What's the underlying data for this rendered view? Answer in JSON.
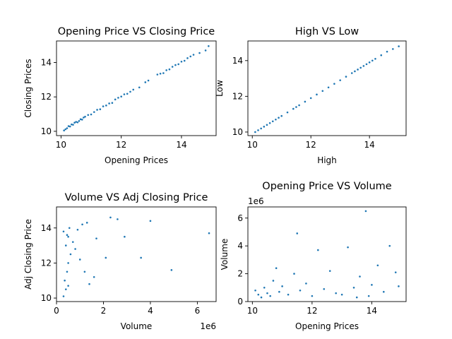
{
  "chart_data": [
    {
      "type": "scatter",
      "title": "Opening Price VS Closing Price",
      "xlabel": "Opening Prices",
      "ylabel": "Closing Prices",
      "xlim": [
        9.85,
        15.15
      ],
      "ylim": [
        9.75,
        15.25
      ],
      "xticks": [
        10,
        12,
        14
      ],
      "yticks": [
        10,
        12,
        14
      ],
      "points": [
        [
          10.1,
          10.05
        ],
        [
          10.15,
          10.12
        ],
        [
          10.2,
          10.18
        ],
        [
          10.25,
          10.3
        ],
        [
          10.3,
          10.28
        ],
        [
          10.35,
          10.4
        ],
        [
          10.4,
          10.38
        ],
        [
          10.45,
          10.5
        ],
        [
          10.5,
          10.55
        ],
        [
          10.55,
          10.52
        ],
        [
          10.6,
          10.6
        ],
        [
          10.65,
          10.7
        ],
        [
          10.7,
          10.68
        ],
        [
          10.75,
          10.8
        ],
        [
          10.8,
          10.85
        ],
        [
          10.9,
          10.95
        ],
        [
          11.0,
          10.98
        ],
        [
          11.1,
          11.12
        ],
        [
          11.2,
          11.25
        ],
        [
          11.3,
          11.28
        ],
        [
          11.4,
          11.45
        ],
        [
          11.5,
          11.5
        ],
        [
          11.6,
          11.62
        ],
        [
          11.7,
          11.65
        ],
        [
          11.8,
          11.85
        ],
        [
          11.9,
          11.95
        ],
        [
          12.0,
          12.02
        ],
        [
          12.1,
          12.15
        ],
        [
          12.2,
          12.18
        ],
        [
          12.3,
          12.3
        ],
        [
          12.4,
          12.42
        ],
        [
          12.6,
          12.55
        ],
        [
          12.8,
          12.85
        ],
        [
          12.9,
          12.95
        ],
        [
          13.2,
          13.3
        ],
        [
          13.3,
          13.35
        ],
        [
          13.4,
          13.38
        ],
        [
          13.5,
          13.55
        ],
        [
          13.6,
          13.6
        ],
        [
          13.7,
          13.75
        ],
        [
          13.8,
          13.85
        ],
        [
          13.9,
          13.9
        ],
        [
          14.0,
          14.05
        ],
        [
          14.1,
          14.1
        ],
        [
          14.2,
          14.25
        ],
        [
          14.3,
          14.35
        ],
        [
          14.4,
          14.45
        ],
        [
          14.6,
          14.55
        ],
        [
          14.8,
          14.7
        ],
        [
          14.9,
          14.95
        ]
      ]
    },
    {
      "type": "scatter",
      "title": "High VS Low",
      "xlabel": "High",
      "ylabel": "Low",
      "xlim": [
        9.85,
        15.25
      ],
      "ylim": [
        9.8,
        15.1
      ],
      "xticks": [
        10,
        12,
        14
      ],
      "yticks": [
        10,
        12,
        14
      ],
      "points": [
        [
          10.1,
          10.0
        ],
        [
          10.2,
          10.1
        ],
        [
          10.3,
          10.2
        ],
        [
          10.4,
          10.3
        ],
        [
          10.5,
          10.4
        ],
        [
          10.6,
          10.5
        ],
        [
          10.7,
          10.6
        ],
        [
          10.8,
          10.7
        ],
        [
          10.9,
          10.8
        ],
        [
          11.0,
          10.9
        ],
        [
          11.2,
          11.1
        ],
        [
          11.4,
          11.3
        ],
        [
          11.5,
          11.4
        ],
        [
          11.6,
          11.5
        ],
        [
          11.8,
          11.7
        ],
        [
          12.0,
          11.9
        ],
        [
          12.2,
          12.1
        ],
        [
          12.4,
          12.3
        ],
        [
          12.6,
          12.5
        ],
        [
          12.8,
          12.7
        ],
        [
          13.0,
          12.9
        ],
        [
          13.2,
          13.1
        ],
        [
          13.4,
          13.3
        ],
        [
          13.5,
          13.4
        ],
        [
          13.6,
          13.5
        ],
        [
          13.7,
          13.6
        ],
        [
          13.8,
          13.7
        ],
        [
          13.9,
          13.8
        ],
        [
          14.0,
          13.9
        ],
        [
          14.1,
          14.0
        ],
        [
          14.2,
          14.1
        ],
        [
          14.4,
          14.3
        ],
        [
          14.6,
          14.5
        ],
        [
          14.8,
          14.65
        ],
        [
          15.0,
          14.8
        ]
      ]
    },
    {
      "type": "scatter",
      "title": "Volume VS Adj Closing Price",
      "xlabel": "Volume",
      "ylabel": "Adj Closing Price",
      "x_multiplier": "1e6",
      "xlim": [
        0,
        6.8
      ],
      "ylim": [
        9.8,
        15.2
      ],
      "xticks": [
        0,
        2,
        4,
        6
      ],
      "yticks": [
        10,
        12,
        14
      ],
      "points": [
        [
          0.3,
          10.1
        ],
        [
          0.4,
          10.5
        ],
        [
          0.5,
          10.7
        ],
        [
          0.35,
          11.0
        ],
        [
          0.45,
          11.5
        ],
        [
          0.5,
          12.0
        ],
        [
          0.6,
          12.5
        ],
        [
          0.4,
          13.0
        ],
        [
          0.5,
          13.5
        ],
        [
          0.55,
          14.0
        ],
        [
          0.3,
          13.8
        ],
        [
          0.45,
          13.6
        ],
        [
          0.7,
          13.2
        ],
        [
          0.8,
          12.8
        ],
        [
          1.0,
          12.2
        ],
        [
          1.2,
          11.5
        ],
        [
          1.4,
          10.8
        ],
        [
          1.6,
          11.2
        ],
        [
          0.9,
          13.9
        ],
        [
          1.1,
          14.2
        ],
        [
          1.3,
          14.3
        ],
        [
          1.7,
          13.4
        ],
        [
          2.1,
          12.3
        ],
        [
          2.3,
          14.6
        ],
        [
          2.6,
          14.5
        ],
        [
          2.9,
          13.5
        ],
        [
          3.6,
          12.3
        ],
        [
          4.0,
          14.4
        ],
        [
          4.9,
          11.6
        ],
        [
          6.5,
          13.7
        ]
      ]
    },
    {
      "type": "scatter",
      "title": "Opening Price VS Volume",
      "xlabel": "Opening Prices",
      "ylabel": "Volume",
      "y_multiplier": "1e6",
      "xlim": [
        9.85,
        15.15
      ],
      "ylim": [
        0,
        6.8
      ],
      "xticks": [
        10,
        12,
        14
      ],
      "yticks": [
        0,
        2,
        4,
        6
      ],
      "points": [
        [
          10.1,
          0.8
        ],
        [
          10.2,
          0.5
        ],
        [
          10.3,
          0.3
        ],
        [
          10.4,
          1.0
        ],
        [
          10.5,
          0.6
        ],
        [
          10.6,
          0.4
        ],
        [
          10.7,
          1.5
        ],
        [
          10.8,
          2.4
        ],
        [
          10.9,
          0.7
        ],
        [
          11.0,
          1.1
        ],
        [
          11.2,
          0.5
        ],
        [
          11.4,
          2.0
        ],
        [
          11.5,
          4.9
        ],
        [
          11.6,
          0.8
        ],
        [
          11.8,
          1.3
        ],
        [
          12.0,
          0.4
        ],
        [
          12.2,
          3.7
        ],
        [
          12.4,
          0.9
        ],
        [
          12.6,
          2.2
        ],
        [
          12.8,
          0.6
        ],
        [
          13.0,
          0.5
        ],
        [
          13.2,
          3.9
        ],
        [
          13.4,
          1.0
        ],
        [
          13.5,
          0.3
        ],
        [
          13.6,
          1.8
        ],
        [
          13.8,
          6.5
        ],
        [
          13.9,
          0.4
        ],
        [
          14.0,
          1.2
        ],
        [
          14.2,
          2.6
        ],
        [
          14.4,
          0.7
        ],
        [
          14.6,
          4.0
        ],
        [
          14.8,
          2.1
        ],
        [
          14.9,
          1.1
        ]
      ]
    }
  ]
}
